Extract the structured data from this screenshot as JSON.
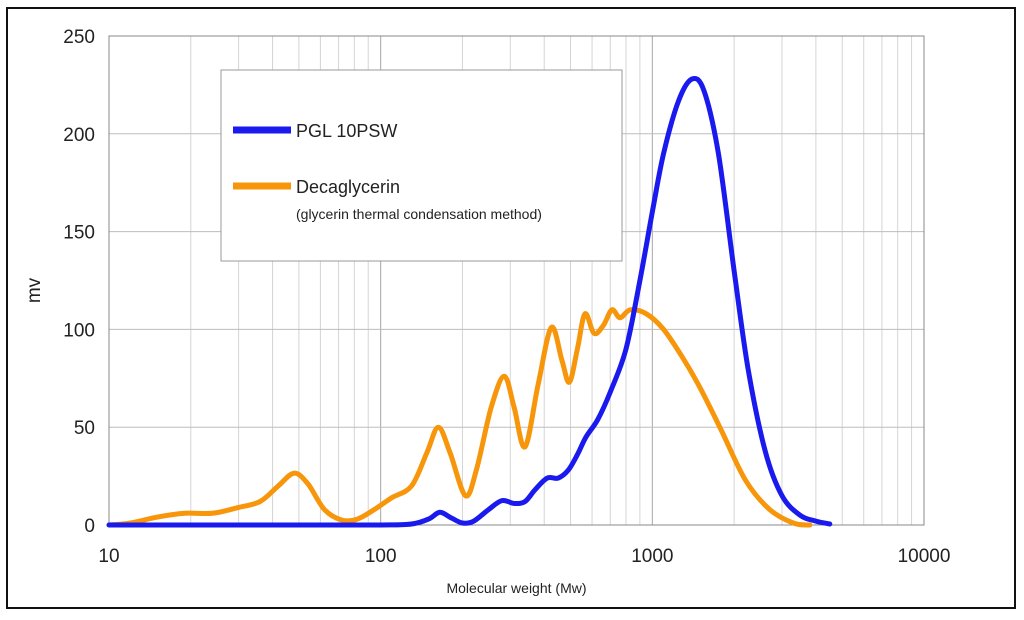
{
  "chart_data": {
    "type": "line",
    "xscale": "log",
    "xlim": [
      10,
      10000
    ],
    "ylim": [
      0,
      250
    ],
    "xticks": [
      10,
      100,
      1000,
      10000
    ],
    "xtick_labels": [
      "10",
      "100",
      "1000",
      "10000"
    ],
    "yticks": [
      0,
      50,
      100,
      150,
      200,
      250
    ],
    "ytick_labels": [
      "0",
      "50",
      "100",
      "150",
      "200",
      "250"
    ],
    "xlabel": "Molecular weight (Mw)",
    "ylabel": "mv",
    "grid": true,
    "legend_position": "top-left",
    "series": [
      {
        "name": "PGL 10PSW",
        "color": "#1a1aee",
        "points": [
          [
            10,
            0
          ],
          [
            50,
            0
          ],
          [
            100,
            0
          ],
          [
            130,
            0.5
          ],
          [
            150,
            3
          ],
          [
            165,
            6.5
          ],
          [
            180,
            4
          ],
          [
            200,
            1
          ],
          [
            220,
            2
          ],
          [
            250,
            8
          ],
          [
            280,
            12.5
          ],
          [
            310,
            11
          ],
          [
            340,
            12
          ],
          [
            370,
            18
          ],
          [
            410,
            24
          ],
          [
            450,
            24
          ],
          [
            490,
            28
          ],
          [
            530,
            36
          ],
          [
            570,
            45
          ],
          [
            630,
            54
          ],
          [
            700,
            68
          ],
          [
            800,
            90
          ],
          [
            900,
            125
          ],
          [
            1000,
            160
          ],
          [
            1100,
            190
          ],
          [
            1250,
            217
          ],
          [
            1400,
            228
          ],
          [
            1550,
            222
          ],
          [
            1750,
            190
          ],
          [
            2000,
            130
          ],
          [
            2250,
            80
          ],
          [
            2600,
            38
          ],
          [
            3000,
            15
          ],
          [
            3500,
            5
          ],
          [
            4000,
            2
          ],
          [
            4500,
            0.5
          ]
        ]
      },
      {
        "name": "Decaglycerin",
        "subtitle": "(glycerin thermal condensation method)",
        "color": "#f7960a",
        "points": [
          [
            10,
            0
          ],
          [
            12,
            1
          ],
          [
            15,
            4
          ],
          [
            19,
            6
          ],
          [
            24,
            6
          ],
          [
            30,
            9
          ],
          [
            36,
            12
          ],
          [
            42,
            20
          ],
          [
            48,
            26.5
          ],
          [
            54,
            21
          ],
          [
            62,
            8
          ],
          [
            72,
            2.5
          ],
          [
            82,
            3
          ],
          [
            95,
            8
          ],
          [
            110,
            14
          ],
          [
            130,
            20
          ],
          [
            148,
            37
          ],
          [
            163,
            50
          ],
          [
            180,
            37
          ],
          [
            205,
            15
          ],
          [
            225,
            28
          ],
          [
            255,
            60
          ],
          [
            285,
            76
          ],
          [
            310,
            60
          ],
          [
            340,
            40
          ],
          [
            380,
            72
          ],
          [
            425,
            101
          ],
          [
            465,
            84
          ],
          [
            495,
            73
          ],
          [
            530,
            90
          ],
          [
            565,
            108
          ],
          [
            610,
            98
          ],
          [
            660,
            102
          ],
          [
            710,
            110
          ],
          [
            760,
            106
          ],
          [
            830,
            110
          ],
          [
            950,
            108
          ],
          [
            1100,
            100
          ],
          [
            1300,
            85
          ],
          [
            1500,
            70
          ],
          [
            1800,
            48
          ],
          [
            2200,
            23
          ],
          [
            2700,
            8
          ],
          [
            3300,
            1
          ],
          [
            3800,
            0
          ]
        ]
      }
    ]
  }
}
